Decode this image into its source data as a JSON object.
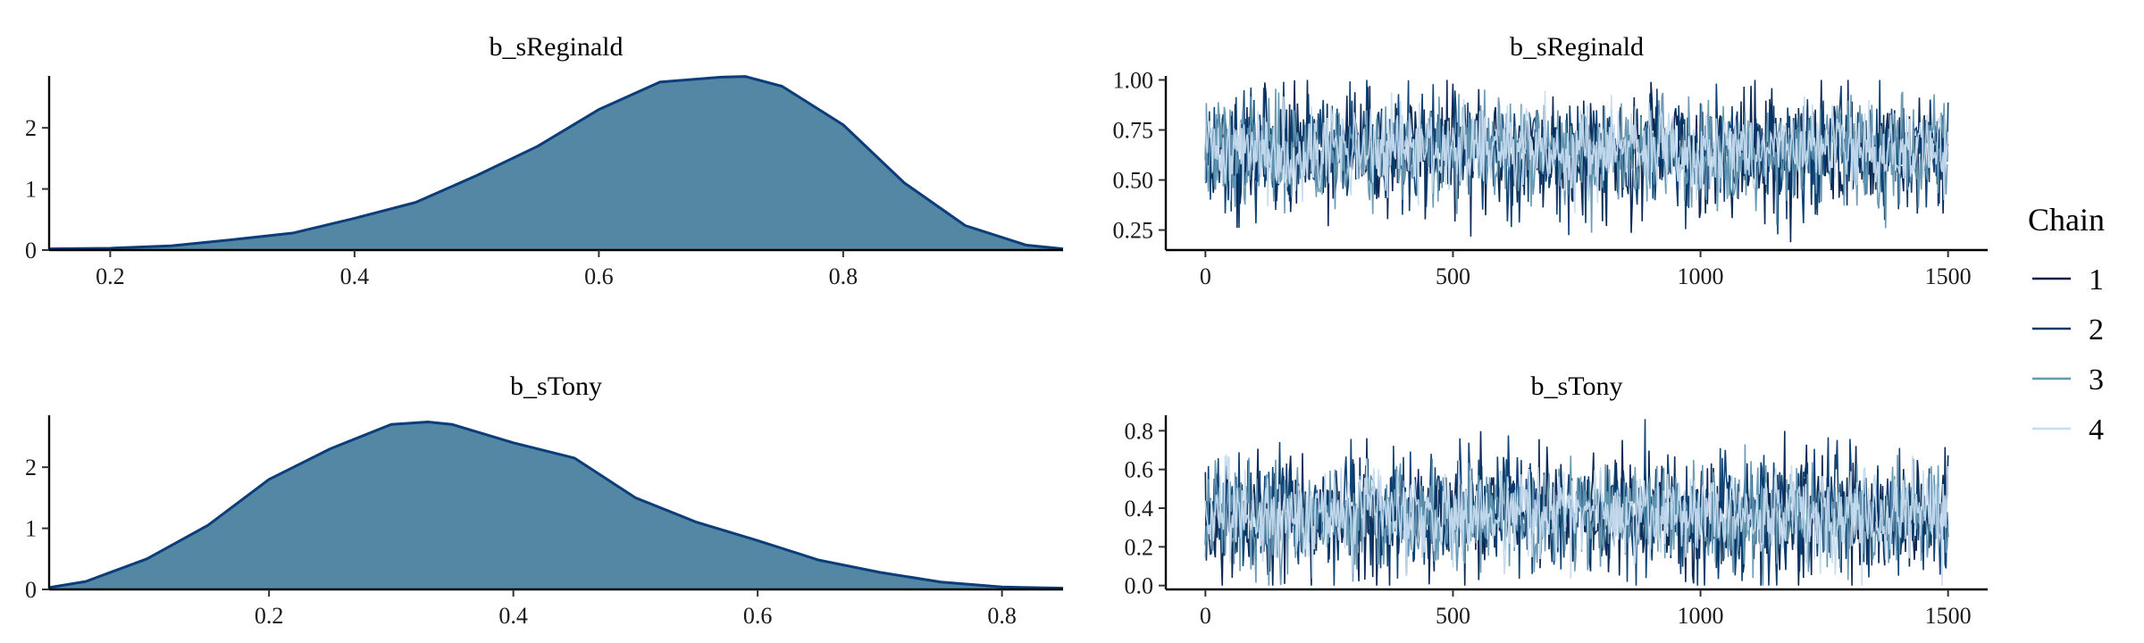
{
  "legend": {
    "title": "Chain",
    "entries": [
      {
        "label": "1",
        "color": "#011f4b"
      },
      {
        "label": "2",
        "color": "#03396c"
      },
      {
        "label": "3",
        "color": "#6497b1"
      },
      {
        "label": "4",
        "color": "#c6dbef"
      }
    ]
  },
  "colors": {
    "density_fill": "#5487a4",
    "density_line": "#0b3d7a",
    "axis": "#000000"
  },
  "chart_data": [
    {
      "type": "area",
      "panel": "density",
      "title": "b_sReginald",
      "xlim": [
        0.15,
        0.98
      ],
      "ylim": [
        0,
        2.85
      ],
      "xticks": [
        0.2,
        0.4,
        0.6,
        0.8
      ],
      "xtick_labels": [
        "0.2",
        "0.4",
        "0.6",
        "0.8"
      ],
      "yticks": [
        0,
        1,
        2
      ],
      "ytick_labels": [
        "0",
        "1",
        "2"
      ],
      "x": [
        0.15,
        0.2,
        0.25,
        0.3,
        0.35,
        0.4,
        0.45,
        0.5,
        0.55,
        0.6,
        0.65,
        0.7,
        0.72,
        0.75,
        0.8,
        0.85,
        0.9,
        0.95,
        0.98
      ],
      "y": [
        0.02,
        0.03,
        0.07,
        0.17,
        0.28,
        0.52,
        0.78,
        1.22,
        1.7,
        2.3,
        2.75,
        2.83,
        2.84,
        2.68,
        2.05,
        1.1,
        0.4,
        0.08,
        0.02
      ]
    },
    {
      "type": "line",
      "panel": "trace",
      "title": "b_sReginald",
      "xlim": [
        -80,
        1580
      ],
      "ylim": [
        0.15,
        1.02
      ],
      "xticks": [
        0,
        500,
        1000,
        1500
      ],
      "xtick_labels": [
        "0",
        "500",
        "1000",
        "1500"
      ],
      "yticks": [
        0.25,
        0.5,
        0.75,
        1.0
      ],
      "ytick_labels": [
        "0.25",
        "0.50",
        "0.75",
        "1.00"
      ],
      "iterations": [
        0,
        1500
      ],
      "series": [
        {
          "name": "1",
          "mean": 0.64,
          "sd": 0.15,
          "seed": 11
        },
        {
          "name": "2",
          "mean": 0.64,
          "sd": 0.14,
          "seed": 23
        },
        {
          "name": "3",
          "mean": 0.64,
          "sd": 0.13,
          "seed": 37
        },
        {
          "name": "4",
          "mean": 0.65,
          "sd": 0.11,
          "seed": 41
        }
      ]
    },
    {
      "type": "area",
      "panel": "density",
      "title": "b_sTony",
      "xlim": [
        0.02,
        0.85
      ],
      "ylim": [
        0,
        2.85
      ],
      "xticks": [
        0.2,
        0.4,
        0.6,
        0.8
      ],
      "xtick_labels": [
        "0.2",
        "0.4",
        "0.6",
        "0.8"
      ],
      "yticks": [
        0,
        1,
        2
      ],
      "ytick_labels": [
        "0",
        "1",
        "2"
      ],
      "x": [
        0.02,
        0.05,
        0.1,
        0.15,
        0.2,
        0.25,
        0.3,
        0.33,
        0.35,
        0.4,
        0.45,
        0.5,
        0.55,
        0.6,
        0.65,
        0.7,
        0.75,
        0.8,
        0.85
      ],
      "y": [
        0.03,
        0.13,
        0.5,
        1.05,
        1.8,
        2.3,
        2.7,
        2.74,
        2.7,
        2.4,
        2.15,
        1.5,
        1.1,
        0.8,
        0.48,
        0.28,
        0.12,
        0.04,
        0.02
      ]
    },
    {
      "type": "line",
      "panel": "trace",
      "title": "b_sTony",
      "xlim": [
        -80,
        1580
      ],
      "ylim": [
        -0.02,
        0.88
      ],
      "xticks": [
        0,
        500,
        1000,
        1500
      ],
      "xtick_labels": [
        "0",
        "500",
        "1000",
        "1500"
      ],
      "yticks": [
        0.0,
        0.2,
        0.4,
        0.6,
        0.8
      ],
      "ytick_labels": [
        "0.0",
        "0.2",
        "0.4",
        "0.6",
        "0.8"
      ],
      "iterations": [
        0,
        1500
      ],
      "series": [
        {
          "name": "1",
          "mean": 0.36,
          "sd": 0.16,
          "seed": 53
        },
        {
          "name": "2",
          "mean": 0.36,
          "sd": 0.15,
          "seed": 67
        },
        {
          "name": "3",
          "mean": 0.36,
          "sd": 0.14,
          "seed": 79
        },
        {
          "name": "4",
          "mean": 0.37,
          "sd": 0.12,
          "seed": 83
        }
      ]
    }
  ]
}
